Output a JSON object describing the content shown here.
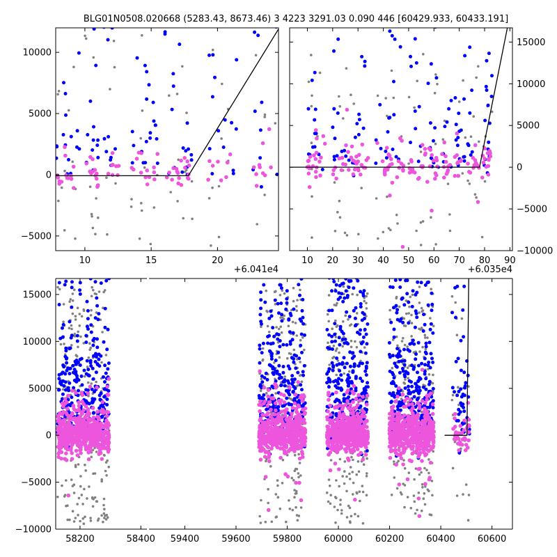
{
  "title": "BLG01N0508.020668 (5283.43, 8673.46)   3 4223 3291.03 0.090 446 [60429.933, 60433.191]",
  "colors": {
    "gray": "#808080",
    "blue": "#0000ff",
    "pink": "#ee55dd",
    "model": "#000000"
  },
  "chart_data": [
    {
      "type": "scatter",
      "panel": "top-left",
      "xlim": [
        7.8,
        24.6
      ],
      "ylim": [
        -6200,
        12000
      ],
      "xticks": [
        10,
        15,
        20
      ],
      "yticks": [
        -5000,
        0,
        5000,
        10000
      ],
      "offset_label": "+6.041e4",
      "seed": 11,
      "model": {
        "x": [
          7.8,
          17.8,
          24.6
        ],
        "y": [
          -80,
          -80,
          11900
        ]
      },
      "clusters": [
        {
          "x": [
            7.8,
            9.7
          ],
          "n": [
            12,
            16,
            14
          ]
        },
        {
          "x": [
            10.0,
            11.0
          ],
          "n": [
            10,
            14,
            12
          ]
        },
        {
          "x": [
            11.4,
            12.6
          ],
          "n": [
            6,
            10,
            8
          ]
        },
        {
          "x": [
            13.5,
            15.5
          ],
          "n": [
            12,
            20,
            14
          ]
        },
        {
          "x": [
            15.9,
            18.1
          ],
          "n": [
            12,
            20,
            18
          ]
        },
        {
          "x": [
            19.3,
            21.5
          ],
          "n": [
            10,
            14,
            8
          ]
        },
        {
          "x": [
            22.6,
            24.5
          ],
          "n": [
            6,
            12,
            10
          ]
        }
      ]
    },
    {
      "type": "scatter",
      "panel": "top-right",
      "xlim": [
        3,
        91
      ],
      "ylim": [
        -10000,
        16700
      ],
      "xticks": [
        10,
        20,
        30,
        40,
        50,
        60,
        70,
        80,
        90
      ],
      "yticks": [
        -10000,
        -5000,
        0,
        5000,
        10000,
        15000
      ],
      "offset_label": "+6.035e4",
      "seed": 23,
      "model": {
        "x": [
          3,
          78,
          89
        ],
        "y": [
          0,
          0,
          16700
        ]
      },
      "clusters": [
        {
          "x": [
            10,
            17
          ],
          "n": [
            10,
            14,
            22
          ]
        },
        {
          "x": [
            20,
            34
          ],
          "n": [
            16,
            26,
            32
          ]
        },
        {
          "x": [
            37,
            48
          ],
          "n": [
            14,
            22,
            26
          ]
        },
        {
          "x": [
            50,
            62
          ],
          "n": [
            16,
            24,
            30
          ]
        },
        {
          "x": [
            63,
            78
          ],
          "n": [
            18,
            30,
            34
          ]
        },
        {
          "x": [
            79,
            83
          ],
          "n": [
            6,
            18,
            14
          ]
        }
      ]
    },
    {
      "type": "scatter",
      "panel": "bottom",
      "xlim": [
        58120,
        60680
      ],
      "ylim": [
        -10000,
        16700
      ],
      "xticks": [
        58200,
        58400,
        59400,
        59600,
        59800,
        60000,
        60200,
        60400,
        60600
      ],
      "xtick_labels": [
        "58200",
        "58400",
        "59400",
        "59600",
        "59800",
        "60000",
        "60200",
        "60400",
        "60600"
      ],
      "yticks": [
        -10000,
        -5000,
        0,
        5000,
        10000,
        15000
      ],
      "axis_break": "58400-59400",
      "seed": 47,
      "model": {
        "x": [
          60300,
          60425,
          60435
        ],
        "y": [
          0,
          0,
          16700
        ]
      },
      "clusters": [
        {
          "x": [
            58130,
            58420
          ],
          "n": [
            220,
            320,
            520
          ]
        },
        {
          "x": [
            59260,
            59520
          ],
          "n": [
            200,
            320,
            520
          ]
        },
        {
          "x": [
            59640,
            59870
          ],
          "n": [
            180,
            320,
            540
          ]
        },
        {
          "x": [
            59990,
            60240
          ],
          "n": [
            180,
            320,
            540
          ]
        },
        {
          "x": [
            60340,
            60440
          ],
          "n": [
            24,
            50,
            40
          ]
        }
      ]
    }
  ]
}
